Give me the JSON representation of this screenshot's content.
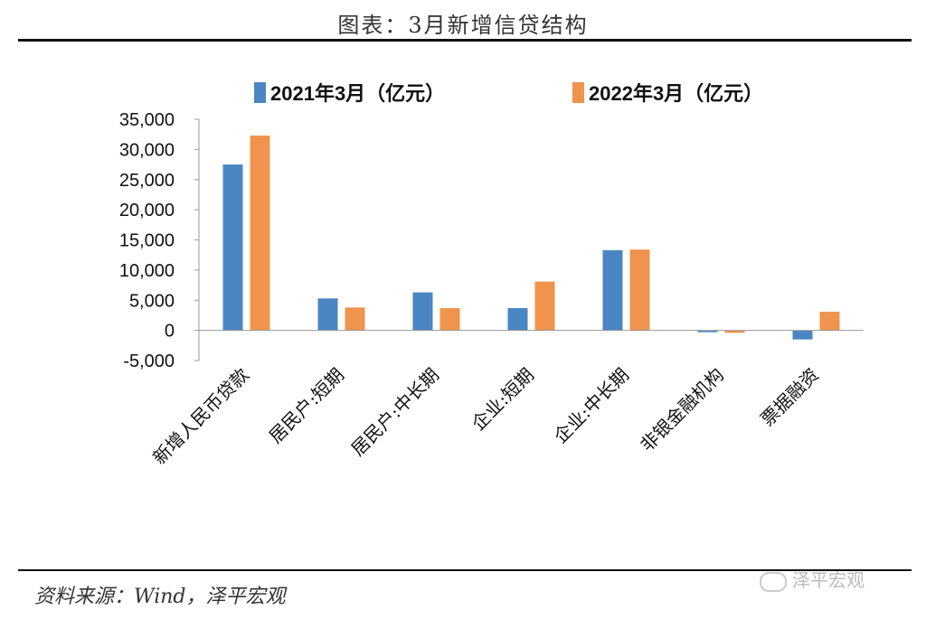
{
  "header": {
    "title": "图表：3月新增信贷结构"
  },
  "footer": {
    "source": "资料来源：Wind，泽平宏观",
    "watermark": "泽平宏观"
  },
  "colors": {
    "series1": "#4a86c2",
    "series2": "#f0944d"
  },
  "chart_data": {
    "type": "bar",
    "categories": [
      "新增人民币贷款",
      "居民户:短期",
      "居民户:中长期",
      "企业:短期",
      "企业:中长期",
      "非银金融机构",
      "票据融资"
    ],
    "series": [
      {
        "name": "2021年3月（亿元）",
        "values": [
          27500,
          5300,
          6300,
          3700,
          13300,
          -300,
          -1500
        ]
      },
      {
        "name": "2022年3月（亿元）",
        "values": [
          32300,
          3800,
          3700,
          8100,
          13400,
          -400,
          3100
        ]
      }
    ],
    "yticks": [
      "35,000",
      "30,000",
      "25,000",
      "20,000",
      "15,000",
      "10,000",
      "5,000",
      "0",
      "-5,000"
    ],
    "ylim": [
      -5000,
      35000
    ],
    "legend_position": "top",
    "grid": false
  }
}
